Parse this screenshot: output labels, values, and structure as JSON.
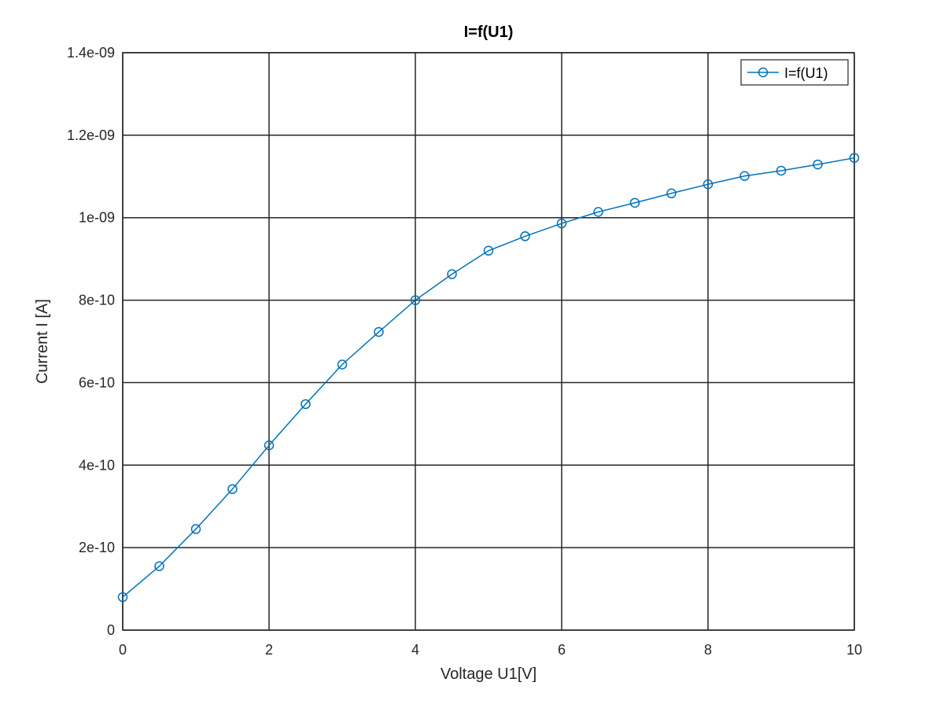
{
  "chart_data": {
    "type": "line",
    "title": "I=f(U1)",
    "xlabel": "Voltage U1[V]",
    "ylabel": "Current I [A]",
    "xlim": [
      0,
      10
    ],
    "ylim": [
      0,
      1.4e-09
    ],
    "xticks": [
      0,
      2,
      4,
      6,
      8,
      10
    ],
    "xtick_labels": [
      "0",
      "2",
      "4",
      "6",
      "8",
      "10"
    ],
    "yticks": [
      0,
      2e-10,
      4e-10,
      6e-10,
      8e-10,
      1e-09,
      1.2e-09,
      1.4e-09
    ],
    "ytick_labels": [
      "0",
      "2e-10",
      "4e-10",
      "6e-10",
      "8e-10",
      "1e-09",
      "1.2e-09",
      "1.4e-09"
    ],
    "grid": true,
    "legend_position": "top-right",
    "series": [
      {
        "name": "I=f(U1)",
        "color": "#0072bd",
        "marker": "circle",
        "x": [
          0,
          0.5,
          1,
          1.5,
          2,
          2.5,
          3,
          3.5,
          4,
          4.5,
          5,
          5.5,
          6,
          6.5,
          7,
          7.5,
          8,
          8.5,
          9,
          9.5,
          10
        ],
        "y": [
          8e-11,
          1.55e-10,
          2.45e-10,
          3.42e-10,
          4.48e-10,
          5.48e-10,
          6.44e-10,
          7.23e-10,
          8e-10,
          8.63e-10,
          9.2e-10,
          9.55e-10,
          9.86e-10,
          1.014e-09,
          1.036e-09,
          1.059e-09,
          1.081e-09,
          1.101e-09,
          1.114e-09,
          1.129e-09,
          1.145e-09
        ]
      }
    ]
  }
}
